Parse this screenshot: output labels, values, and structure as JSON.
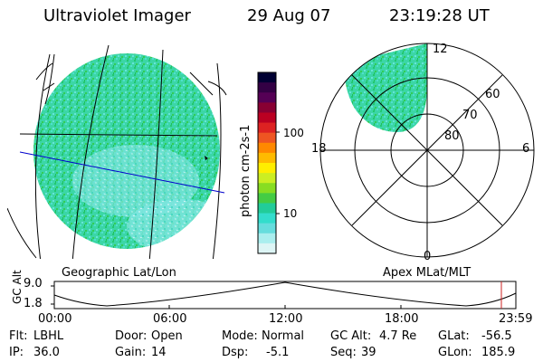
{
  "header": {
    "title": "Ultraviolet Imager",
    "date": "29 Aug 07",
    "time": "23:19:28 UT"
  },
  "colorbar": {
    "ticks": [
      "100",
      "10"
    ],
    "unit_label": "photon cm-2s-1",
    "colors": [
      "#000033",
      "#330044",
      "#550055",
      "#880033",
      "#bb0022",
      "#dd2222",
      "#ee5522",
      "#ff8800",
      "#ffbb00",
      "#ffee00",
      "#ccee22",
      "#88dd22",
      "#44cc44",
      "#22cc99",
      "#33ddcc",
      "#66dddd",
      "#aaeeee",
      "#ddf5f5"
    ]
  },
  "geo_panel": {
    "label": "Geographic Lat/Lon"
  },
  "polar_panel": {
    "label": "Apex MLat/MLT",
    "mlt_labels": [
      "12",
      "18",
      "6",
      "0"
    ],
    "lat_labels": [
      "60",
      "70",
      "80"
    ]
  },
  "altitude_plot": {
    "ylabel": "GC Alt",
    "yticks": [
      "9.0",
      "1.8"
    ],
    "xticks": [
      "00:00",
      "06:00",
      "12:00",
      "18:00",
      "23:59"
    ],
    "marker_color": "#cc2222"
  },
  "status": {
    "row1": [
      {
        "key": "Flt:",
        "val": "LBHL"
      },
      {
        "key": "Door:",
        "val": "Open"
      },
      {
        "key": "Mode:",
        "val": "Normal"
      },
      {
        "key": "GC Alt:",
        "val": "4.7 Re"
      },
      {
        "key": "GLat:",
        "val": "-56.5"
      }
    ],
    "row2": [
      {
        "key": "IP:",
        "val": "36.0"
      },
      {
        "key": "Gain:",
        "val": "14"
      },
      {
        "key": "Dsp:",
        "val": "-5.1"
      },
      {
        "key": "Seq:",
        "val": "39"
      },
      {
        "key": "GLon:",
        "val": "185.9"
      }
    ]
  }
}
